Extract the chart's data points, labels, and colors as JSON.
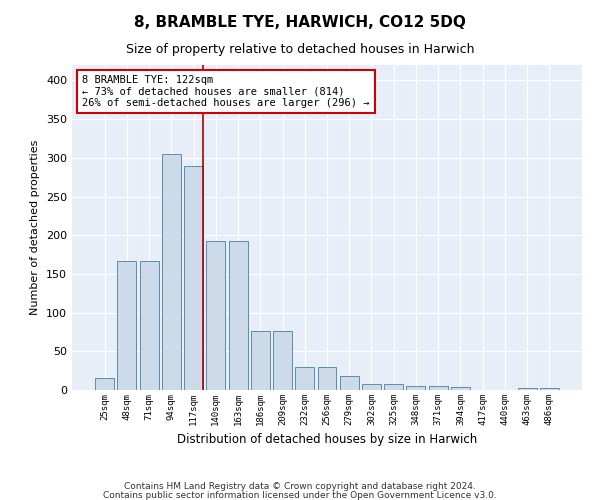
{
  "title": "8, BRAMBLE TYE, HARWICH, CO12 5DQ",
  "subtitle": "Size of property relative to detached houses in Harwich",
  "xlabel": "Distribution of detached houses by size in Harwich",
  "ylabel": "Number of detached properties",
  "categories": [
    "25sqm",
    "48sqm",
    "71sqm",
    "94sqm",
    "117sqm",
    "140sqm",
    "163sqm",
    "186sqm",
    "209sqm",
    "232sqm",
    "256sqm",
    "279sqm",
    "302sqm",
    "325sqm",
    "348sqm",
    "371sqm",
    "394sqm",
    "417sqm",
    "440sqm",
    "463sqm",
    "486sqm"
  ],
  "values": [
    15,
    167,
    167,
    305,
    290,
    192,
    192,
    76,
    76,
    30,
    30,
    18,
    8,
    8,
    5,
    5,
    4,
    0,
    0,
    2,
    2
  ],
  "bar_color": "#ccdaea",
  "bar_edge_color": "#5b8db0",
  "bg_color": "#e8eef8",
  "grid_color": "#ffffff",
  "red_line_index": 4.42,
  "annotation_text": "8 BRAMBLE TYE: 122sqm\n← 73% of detached houses are smaller (814)\n26% of semi-detached houses are larger (296) →",
  "annotation_box_color": "#ffffff",
  "annotation_box_edge": "#cc0000",
  "ylim": [
    0,
    420
  ],
  "yticks": [
    0,
    50,
    100,
    150,
    200,
    250,
    300,
    350,
    400
  ],
  "footer1": "Contains HM Land Registry data © Crown copyright and database right 2024.",
  "footer2": "Contains public sector information licensed under the Open Government Licence v3.0."
}
